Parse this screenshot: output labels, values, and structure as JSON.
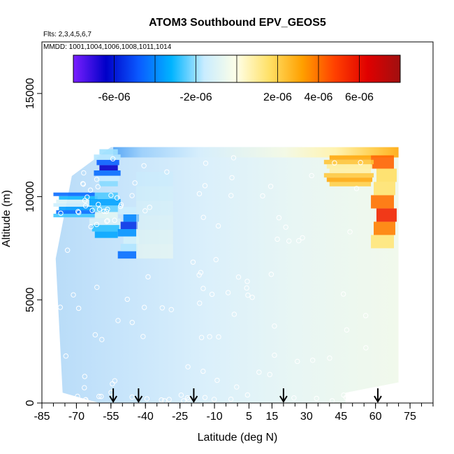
{
  "chart_data": {
    "type": "heatmap",
    "title": "ATOM3 Southbound EPV_GEOS5",
    "flights_note": "Flts: 2,3,4,5,6,7",
    "dates_note": "MMDD: 1001,1004,1006,1008,1011,1014",
    "xlabel": "Latitude (deg N)",
    "ylabel": "Altitude (m)",
    "x_ticks": [
      "-85",
      "-70",
      "-55",
      "-40",
      "-25",
      "-10",
      "5",
      "15",
      "30",
      "45",
      "60",
      "75"
    ],
    "y_ticks": [
      "0",
      "5000",
      "10000",
      "15000"
    ],
    "xlim": [
      -85,
      85
    ],
    "ylim": [
      0,
      17500
    ],
    "colorbar": {
      "tick_labels": [
        "-6e-06",
        "-2e-06",
        "2e-06",
        "4e-06",
        "6e-06"
      ],
      "range": [
        -8e-06,
        8e-06
      ],
      "colors": [
        "#7a1fff",
        "#0000c8",
        "#0a5aff",
        "#00b4ff",
        "#c8ecff",
        "#ffffe6",
        "#ffe066",
        "#ffa000",
        "#ff4000",
        "#e00000",
        "#a01010"
      ]
    },
    "arrow_latitudes": [
      -54,
      -43,
      -19,
      20,
      61
    ],
    "profiles": [
      {
        "lat_range": [
          -80,
          -62
        ],
        "alt_range": [
          9000,
          10200
        ],
        "value": -4.5e-06
      },
      {
        "lat_range": [
          -62,
          -52
        ],
        "alt_range": [
          8000,
          10200
        ],
        "value": -3.5e-06
      },
      {
        "lat_range": [
          -52,
          -44
        ],
        "alt_range": [
          7000,
          9500
        ],
        "value": -5.5e-06
      },
      {
        "lat_range": [
          -60,
          -52
        ],
        "alt_range": [
          10500,
          12300
        ],
        "value": -6.5e-06
      },
      {
        "lat_range": [
          58,
          68
        ],
        "alt_range": [
          7500,
          12000
        ],
        "value": 5.5e-06
      },
      {
        "lat_range": [
          40,
          58
        ],
        "alt_range": [
          10500,
          12000
        ],
        "value": 3e-06
      }
    ]
  }
}
